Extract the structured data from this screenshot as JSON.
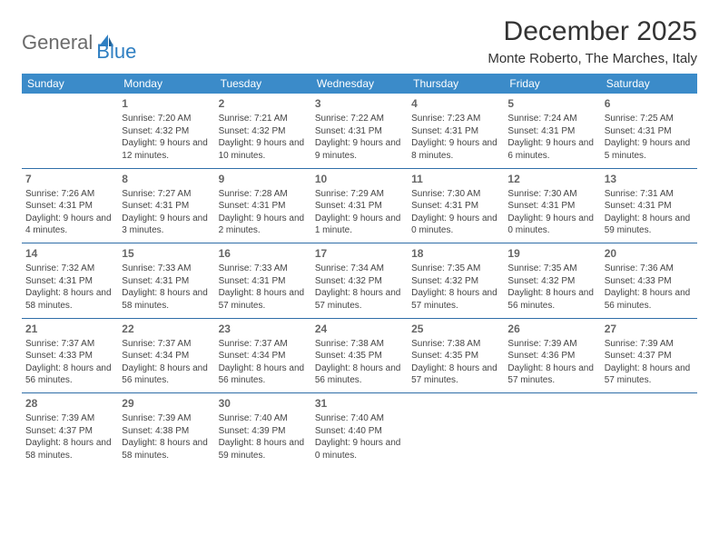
{
  "logo": {
    "part1": "General",
    "part2": "Blue"
  },
  "title": "December 2025",
  "location": "Monte Roberto, The Marches, Italy",
  "colors": {
    "header_bg": "#3b8bc9",
    "header_text": "#ffffff",
    "rule": "#2f6ea8",
    "logo_gray": "#6b6b6b",
    "logo_blue": "#2f7fc2",
    "body_text": "#444444",
    "daynum": "#666666",
    "background": "#ffffff"
  },
  "typography": {
    "title_fontsize": 30,
    "location_fontsize": 15,
    "dayheader_fontsize": 12,
    "daynum_fontsize": 12,
    "cell_fontsize": 10,
    "font_family": "Arial"
  },
  "day_headers": [
    "Sunday",
    "Monday",
    "Tuesday",
    "Wednesday",
    "Thursday",
    "Friday",
    "Saturday"
  ],
  "weeks": [
    [
      null,
      {
        "n": "1",
        "sr": "Sunrise: 7:20 AM",
        "ss": "Sunset: 4:32 PM",
        "dl": "Daylight: 9 hours and 12 minutes."
      },
      {
        "n": "2",
        "sr": "Sunrise: 7:21 AM",
        "ss": "Sunset: 4:32 PM",
        "dl": "Daylight: 9 hours and 10 minutes."
      },
      {
        "n": "3",
        "sr": "Sunrise: 7:22 AM",
        "ss": "Sunset: 4:31 PM",
        "dl": "Daylight: 9 hours and 9 minutes."
      },
      {
        "n": "4",
        "sr": "Sunrise: 7:23 AM",
        "ss": "Sunset: 4:31 PM",
        "dl": "Daylight: 9 hours and 8 minutes."
      },
      {
        "n": "5",
        "sr": "Sunrise: 7:24 AM",
        "ss": "Sunset: 4:31 PM",
        "dl": "Daylight: 9 hours and 6 minutes."
      },
      {
        "n": "6",
        "sr": "Sunrise: 7:25 AM",
        "ss": "Sunset: 4:31 PM",
        "dl": "Daylight: 9 hours and 5 minutes."
      }
    ],
    [
      {
        "n": "7",
        "sr": "Sunrise: 7:26 AM",
        "ss": "Sunset: 4:31 PM",
        "dl": "Daylight: 9 hours and 4 minutes."
      },
      {
        "n": "8",
        "sr": "Sunrise: 7:27 AM",
        "ss": "Sunset: 4:31 PM",
        "dl": "Daylight: 9 hours and 3 minutes."
      },
      {
        "n": "9",
        "sr": "Sunrise: 7:28 AM",
        "ss": "Sunset: 4:31 PM",
        "dl": "Daylight: 9 hours and 2 minutes."
      },
      {
        "n": "10",
        "sr": "Sunrise: 7:29 AM",
        "ss": "Sunset: 4:31 PM",
        "dl": "Daylight: 9 hours and 1 minute."
      },
      {
        "n": "11",
        "sr": "Sunrise: 7:30 AM",
        "ss": "Sunset: 4:31 PM",
        "dl": "Daylight: 9 hours and 0 minutes."
      },
      {
        "n": "12",
        "sr": "Sunrise: 7:30 AM",
        "ss": "Sunset: 4:31 PM",
        "dl": "Daylight: 9 hours and 0 minutes."
      },
      {
        "n": "13",
        "sr": "Sunrise: 7:31 AM",
        "ss": "Sunset: 4:31 PM",
        "dl": "Daylight: 8 hours and 59 minutes."
      }
    ],
    [
      {
        "n": "14",
        "sr": "Sunrise: 7:32 AM",
        "ss": "Sunset: 4:31 PM",
        "dl": "Daylight: 8 hours and 58 minutes."
      },
      {
        "n": "15",
        "sr": "Sunrise: 7:33 AM",
        "ss": "Sunset: 4:31 PM",
        "dl": "Daylight: 8 hours and 58 minutes."
      },
      {
        "n": "16",
        "sr": "Sunrise: 7:33 AM",
        "ss": "Sunset: 4:31 PM",
        "dl": "Daylight: 8 hours and 57 minutes."
      },
      {
        "n": "17",
        "sr": "Sunrise: 7:34 AM",
        "ss": "Sunset: 4:32 PM",
        "dl": "Daylight: 8 hours and 57 minutes."
      },
      {
        "n": "18",
        "sr": "Sunrise: 7:35 AM",
        "ss": "Sunset: 4:32 PM",
        "dl": "Daylight: 8 hours and 57 minutes."
      },
      {
        "n": "19",
        "sr": "Sunrise: 7:35 AM",
        "ss": "Sunset: 4:32 PM",
        "dl": "Daylight: 8 hours and 56 minutes."
      },
      {
        "n": "20",
        "sr": "Sunrise: 7:36 AM",
        "ss": "Sunset: 4:33 PM",
        "dl": "Daylight: 8 hours and 56 minutes."
      }
    ],
    [
      {
        "n": "21",
        "sr": "Sunrise: 7:37 AM",
        "ss": "Sunset: 4:33 PM",
        "dl": "Daylight: 8 hours and 56 minutes."
      },
      {
        "n": "22",
        "sr": "Sunrise: 7:37 AM",
        "ss": "Sunset: 4:34 PM",
        "dl": "Daylight: 8 hours and 56 minutes."
      },
      {
        "n": "23",
        "sr": "Sunrise: 7:37 AM",
        "ss": "Sunset: 4:34 PM",
        "dl": "Daylight: 8 hours and 56 minutes."
      },
      {
        "n": "24",
        "sr": "Sunrise: 7:38 AM",
        "ss": "Sunset: 4:35 PM",
        "dl": "Daylight: 8 hours and 56 minutes."
      },
      {
        "n": "25",
        "sr": "Sunrise: 7:38 AM",
        "ss": "Sunset: 4:35 PM",
        "dl": "Daylight: 8 hours and 57 minutes."
      },
      {
        "n": "26",
        "sr": "Sunrise: 7:39 AM",
        "ss": "Sunset: 4:36 PM",
        "dl": "Daylight: 8 hours and 57 minutes."
      },
      {
        "n": "27",
        "sr": "Sunrise: 7:39 AM",
        "ss": "Sunset: 4:37 PM",
        "dl": "Daylight: 8 hours and 57 minutes."
      }
    ],
    [
      {
        "n": "28",
        "sr": "Sunrise: 7:39 AM",
        "ss": "Sunset: 4:37 PM",
        "dl": "Daylight: 8 hours and 58 minutes."
      },
      {
        "n": "29",
        "sr": "Sunrise: 7:39 AM",
        "ss": "Sunset: 4:38 PM",
        "dl": "Daylight: 8 hours and 58 minutes."
      },
      {
        "n": "30",
        "sr": "Sunrise: 7:40 AM",
        "ss": "Sunset: 4:39 PM",
        "dl": "Daylight: 8 hours and 59 minutes."
      },
      {
        "n": "31",
        "sr": "Sunrise: 7:40 AM",
        "ss": "Sunset: 4:40 PM",
        "dl": "Daylight: 9 hours and 0 minutes."
      },
      null,
      null,
      null
    ]
  ]
}
